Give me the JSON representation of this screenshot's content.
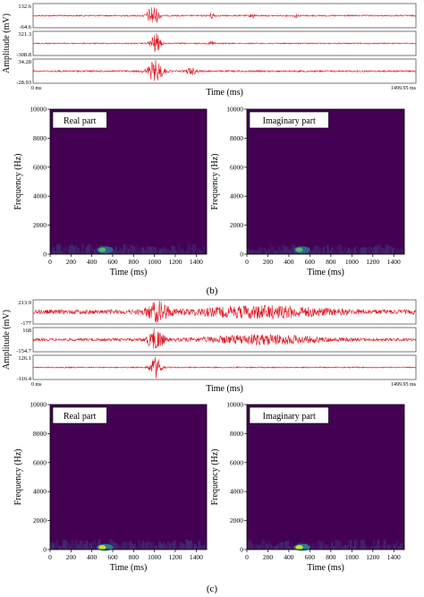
{
  "chart_data": [
    {
      "type": "line",
      "panel": "waveform-top",
      "ylabel": "Amplitude (mV)",
      "xlabel": "Time (ms)",
      "x_start_label": "0 ms",
      "x_end_label": "1499.95 ms",
      "xlim": [
        0,
        1499.95
      ],
      "channels": [
        {
          "ymax_label": "132.6",
          "ymin_label": "-64.6",
          "ylim": [
            -64.6,
            132.6
          ],
          "bursts": [
            {
              "t": 470,
              "amp": 0.95,
              "width": 22
            },
            {
              "t": 700,
              "amp": 0.25,
              "width": 12
            },
            {
              "t": 860,
              "amp": 0.2,
              "width": 10
            },
            {
              "t": 1030,
              "amp": 0.18,
              "width": 10
            }
          ],
          "noise": 0.06
        },
        {
          "ymax_label": "321.3",
          "ymin_label": "-308.8",
          "ylim": [
            -308.8,
            321.3
          ],
          "bursts": [
            {
              "t": 480,
              "amp": 0.9,
              "width": 20
            },
            {
              "t": 700,
              "amp": 0.2,
              "width": 12
            }
          ],
          "noise": 0.05
        },
        {
          "ymax_label": "34.28",
          "ymin_label": "-28.93",
          "ylim": [
            -28.93,
            34.28
          ],
          "bursts": [
            {
              "t": 480,
              "amp": 0.95,
              "width": 30
            },
            {
              "t": 620,
              "amp": 0.3,
              "width": 20
            }
          ],
          "noise": 0.07
        }
      ]
    },
    {
      "type": "heatmap",
      "panel": "spectrogram-b-real",
      "label": "Real part",
      "xlabel": "Time (ms)",
      "ylabel": "Frequency (Hz)",
      "xticks": [
        0,
        200,
        400,
        600,
        800,
        1000,
        1200,
        1400
      ],
      "yticks": [
        0,
        2000,
        4000,
        6000,
        8000,
        10000
      ],
      "xlim": [
        0,
        1500
      ],
      "ylim": [
        0,
        10000
      ],
      "background_color": "#440154",
      "hot_spots": [
        {
          "t": 500,
          "f": 300,
          "level": 0.7
        }
      ]
    },
    {
      "type": "heatmap",
      "panel": "spectrogram-b-imag",
      "label": "Imaginary part",
      "xlabel": "Time (ms)",
      "ylabel": "Frequency (Hz)",
      "xticks": [
        0,
        200,
        400,
        600,
        800,
        1000,
        1200,
        1400
      ],
      "yticks": [
        0,
        2000,
        4000,
        6000,
        8000,
        10000
      ],
      "xlim": [
        0,
        1500
      ],
      "ylim": [
        0,
        10000
      ],
      "background_color": "#440154",
      "hot_spots": [
        {
          "t": 500,
          "f": 300,
          "level": 0.7
        }
      ]
    },
    {
      "type": "line",
      "panel": "waveform-c",
      "ylabel": "Amplitude (mV)",
      "xlabel": "Time (ms)",
      "x_start_label": "0 ms",
      "x_end_label": "1499.95 ms",
      "xlim": [
        0,
        1499.95
      ],
      "channels": [
        {
          "ymax_label": "213.9",
          "ymin_label": "-177",
          "ylim": [
            -177,
            213.9
          ],
          "bursts": [
            {
              "t": 490,
              "amp": 0.9,
              "width": 40
            },
            {
              "t": 900,
              "amp": 0.45,
              "width": 250
            }
          ],
          "noise": 0.2
        },
        {
          "ymax_label": "168",
          "ymin_label": "-154.7",
          "ylim": [
            -154.7,
            168
          ],
          "bursts": [
            {
              "t": 480,
              "amp": 0.95,
              "width": 30
            },
            {
              "t": 900,
              "amp": 0.4,
              "width": 220
            }
          ],
          "noise": 0.12
        },
        {
          "ymax_label": "126.1",
          "ymin_label": "-116.4",
          "ylim": [
            -116.4,
            126.1
          ],
          "bursts": [
            {
              "t": 480,
              "amp": 0.95,
              "width": 22
            }
          ],
          "noise": 0.05
        }
      ]
    },
    {
      "type": "heatmap",
      "panel": "spectrogram-c-real",
      "label": "Real part",
      "xlabel": "Time (ms)",
      "ylabel": "Frequency (Hz)",
      "xticks": [
        0,
        200,
        400,
        600,
        800,
        1000,
        1200,
        1400
      ],
      "yticks": [
        0,
        2000,
        4000,
        6000,
        8000,
        10000
      ],
      "xlim": [
        0,
        1500
      ],
      "ylim": [
        0,
        10000
      ],
      "background_color": "#440154",
      "hot_spots": [
        {
          "t": 500,
          "f": 150,
          "level": 0.95
        }
      ]
    },
    {
      "type": "heatmap",
      "panel": "spectrogram-c-imag",
      "label": "Imaginary part",
      "xlabel": "Time (ms)",
      "ylabel": "Frequency (Hz)",
      "xticks": [
        0,
        200,
        400,
        600,
        800,
        1000,
        1200,
        1400
      ],
      "yticks": [
        0,
        2000,
        4000,
        6000,
        8000,
        10000
      ],
      "xlim": [
        0,
        1500
      ],
      "ylim": [
        0,
        10000
      ],
      "background_color": "#440154",
      "hot_spots": [
        {
          "t": 500,
          "f": 150,
          "level": 0.95
        }
      ]
    }
  ],
  "captions": {
    "b": "(b)",
    "c": "(c)"
  },
  "colors": {
    "waveform": "#e0141e",
    "viridis_low": "#440154",
    "viridis_mid": "#21918c",
    "viridis_high": "#fde725"
  }
}
